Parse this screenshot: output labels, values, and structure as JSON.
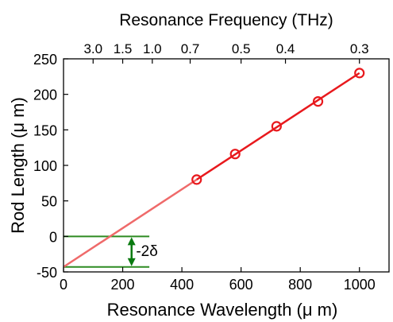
{
  "chart_data": {
    "type": "line",
    "title": "",
    "xlabel": "Resonance Wavelength (μ m)",
    "ylabel": "Rod Length (μ m)",
    "top_axis_label": "Resonance Frequency (THz)",
    "xlim": [
      0,
      1100
    ],
    "ylim": [
      -50,
      250
    ],
    "x_ticks": [
      0,
      200,
      400,
      600,
      800,
      1000
    ],
    "x_tick_labels": [
      "0",
      "200",
      "400",
      "600",
      "800",
      "1000"
    ],
    "y_ticks": [
      -50,
      0,
      50,
      100,
      150,
      200,
      250
    ],
    "y_tick_labels": [
      "-50",
      "0",
      "50",
      "100",
      "150",
      "200",
      "250"
    ],
    "top_ticks": [
      {
        "x": 100,
        "label": "3.0"
      },
      {
        "x": 200,
        "label": "1.5"
      },
      {
        "x": 300,
        "label": "1.0"
      },
      {
        "x": 428,
        "label": "0.7"
      },
      {
        "x": 600,
        "label": "0.5"
      },
      {
        "x": 750,
        "label": "0.4"
      },
      {
        "x": 1000,
        "label": "0.3"
      }
    ],
    "grid": false,
    "series": [
      {
        "points": [
          [
            450,
            80
          ],
          [
            580,
            116
          ],
          [
            720,
            155
          ],
          [
            860,
            190
          ],
          [
            1000,
            230
          ]
        ],
        "line": [
          [
            0,
            -43
          ],
          [
            450,
            80
          ],
          [
            1000,
            230
          ]
        ],
        "color": "#e8191d",
        "marker": "circle"
      }
    ],
    "annotations": {
      "hlines": [
        {
          "y": 0,
          "x_range": [
            0,
            290
          ],
          "color": "#2e8b22"
        },
        {
          "y": -43,
          "x_range": [
            0,
            290
          ],
          "color": "#2e8b22"
        }
      ],
      "arrow": {
        "x": 230,
        "y_from": -43,
        "y_to": 0,
        "color": "#0a7a10"
      },
      "arrow_label": "-2δ",
      "arrow_label_pos": [
        245,
        -20
      ]
    }
  }
}
